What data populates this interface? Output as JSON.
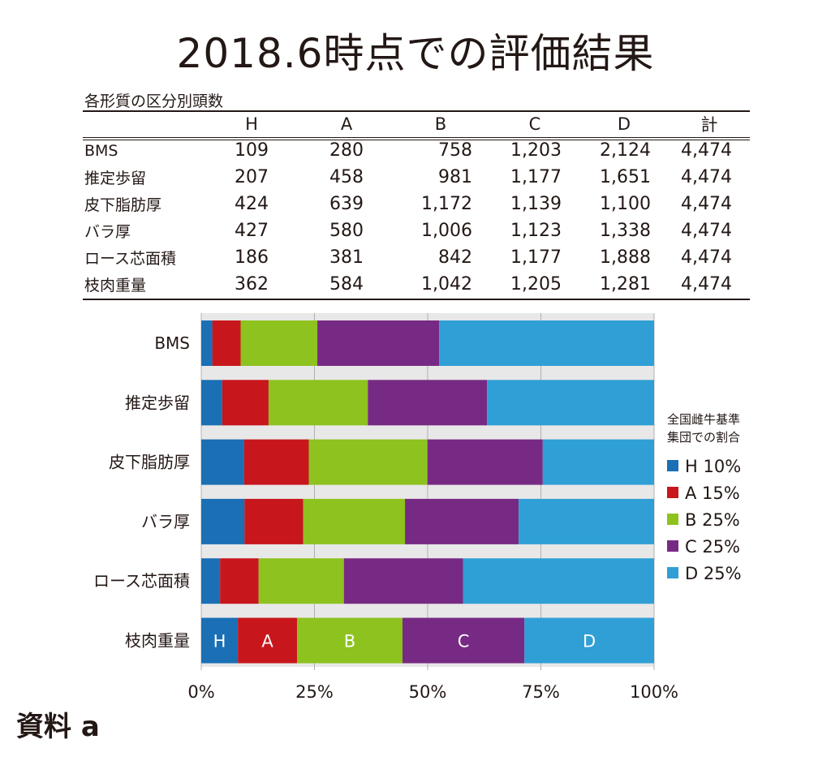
{
  "title": "2018.6時点での評価結果",
  "table": {
    "caption": "各形質の区分別頭数",
    "headers": [
      "",
      "H",
      "A",
      "B",
      "C",
      "D",
      "計"
    ],
    "rows": [
      {
        "label": "BMS",
        "values": [
          "109",
          "280",
          "758",
          "1,203",
          "2,124",
          "4,474"
        ]
      },
      {
        "label": "推定歩留",
        "values": [
          "207",
          "458",
          "981",
          "1,177",
          "1,651",
          "4,474"
        ]
      },
      {
        "label": "皮下脂肪厚",
        "values": [
          "424",
          "639",
          "1,172",
          "1,139",
          "1,100",
          "4,474"
        ]
      },
      {
        "label": "バラ厚",
        "values": [
          "427",
          "580",
          "1,006",
          "1,123",
          "1,338",
          "4,474"
        ]
      },
      {
        "label": "ロース芯面積",
        "values": [
          "186",
          "381",
          "842",
          "1,177",
          "1,888",
          "4,474"
        ]
      },
      {
        "label": "枝肉重量",
        "values": [
          "362",
          "584",
          "1,042",
          "1,205",
          "1,281",
          "4,474"
        ]
      }
    ]
  },
  "chart_data": {
    "type": "bar",
    "orientation": "horizontal",
    "stacked": "percent",
    "categories": [
      "BMS",
      "推定歩留",
      "皮下脂肪厚",
      "バラ厚",
      "ロース芯面積",
      "枝肉重量"
    ],
    "series": [
      {
        "name": "H",
        "color": "#1a6fb5",
        "values": [
          109,
          207,
          424,
          427,
          186,
          362
        ]
      },
      {
        "name": "A",
        "color": "#c8161d",
        "values": [
          280,
          458,
          639,
          580,
          381,
          584
        ]
      },
      {
        "name": "B",
        "color": "#8dc21f",
        "values": [
          758,
          981,
          1172,
          1006,
          842,
          1042
        ]
      },
      {
        "name": "C",
        "color": "#772a83",
        "values": [
          1203,
          1177,
          1139,
          1123,
          1177,
          1205
        ]
      },
      {
        "name": "D",
        "color": "#2f9fd6",
        "values": [
          2124,
          1651,
          1100,
          1338,
          1888,
          1281
        ]
      }
    ],
    "xlim": [
      0,
      100
    ],
    "x_ticks": [
      "0%",
      "25%",
      "50%",
      "75%",
      "100%"
    ],
    "in_bar_labels": [
      "H",
      "A",
      "B",
      "C",
      "D"
    ],
    "legend": {
      "title_lines": [
        "全国雌牛基準",
        "集団での割合"
      ],
      "entries": [
        "H 10%",
        "A 15%",
        "B 25%",
        "C 25%",
        "D 25%"
      ],
      "placement": "right"
    },
    "grid": "vertical"
  },
  "footer": "資料 a"
}
